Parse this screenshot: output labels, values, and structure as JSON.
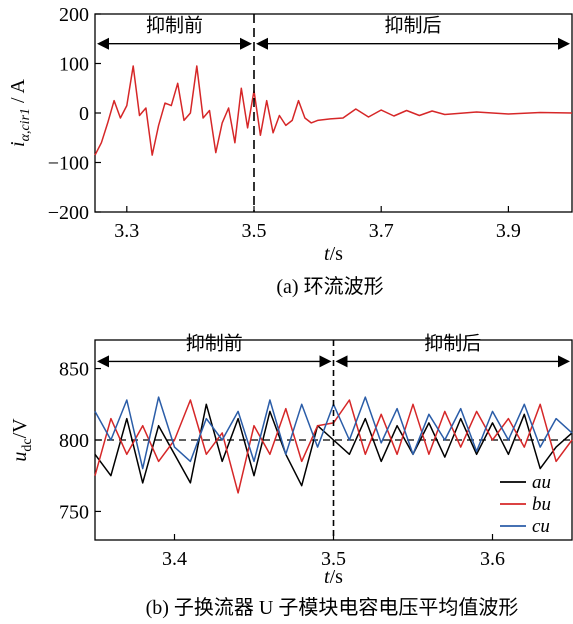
{
  "chart_data": [
    {
      "type": "line",
      "ylabel_main": "i",
      "ylabel_sub": "α,cir1",
      "ylabel_unit": " / A",
      "xlabel_main": "t",
      "xlabel_unit": "/s",
      "caption": "(a)  环流波形",
      "xlim": [
        3.25,
        4.0
      ],
      "ylim": [
        -200,
        200
      ],
      "xticks": [
        3.3,
        3.5,
        3.7,
        3.9
      ],
      "xtick_labels": [
        "3.3",
        "3.5",
        "3.7",
        "3.9"
      ],
      "yticks": [
        200,
        100,
        0,
        -100,
        -200
      ],
      "ytick_labels": [
        "200",
        "100",
        "0",
        "−100",
        "−200"
      ],
      "divider_x": 3.5,
      "annotations": [
        {
          "text": "抑制前",
          "x_start": 3.25,
          "x_end": 3.5,
          "y": 140
        },
        {
          "text": "抑制后",
          "x_start": 3.5,
          "x_end": 4.0,
          "y": 140
        }
      ],
      "series": [
        {
          "color": "#d62728",
          "x": [
            3.25,
            3.26,
            3.27,
            3.28,
            3.29,
            3.3,
            3.31,
            3.32,
            3.33,
            3.34,
            3.35,
            3.36,
            3.37,
            3.38,
            3.39,
            3.4,
            3.41,
            3.42,
            3.43,
            3.44,
            3.45,
            3.46,
            3.47,
            3.48,
            3.49,
            3.5,
            3.51,
            3.52,
            3.53,
            3.54,
            3.55,
            3.56,
            3.57,
            3.58,
            3.59,
            3.6,
            3.62,
            3.64,
            3.66,
            3.68,
            3.7,
            3.72,
            3.74,
            3.76,
            3.78,
            3.8,
            3.85,
            3.9,
            3.95,
            4.0
          ],
          "y": [
            -85,
            -60,
            -20,
            25,
            -10,
            15,
            95,
            -5,
            10,
            -85,
            -25,
            20,
            15,
            60,
            -15,
            0,
            95,
            -10,
            5,
            -80,
            -20,
            10,
            -60,
            50,
            -30,
            45,
            -45,
            25,
            -40,
            -5,
            -25,
            -15,
            25,
            -10,
            -20,
            -15,
            -12,
            -10,
            8,
            -8,
            6,
            -6,
            5,
            -5,
            4,
            -3,
            2,
            -2,
            1,
            0
          ]
        }
      ]
    },
    {
      "type": "line",
      "ylabel_main": "u",
      "ylabel_sub": "dc",
      "ylabel_unit": "/V",
      "xlabel_main": "t",
      "xlabel_unit": "/s",
      "caption": "(b)  子换流器 U 子模块电容电压平均值波形",
      "xlim": [
        3.35,
        3.65
      ],
      "ylim": [
        730,
        870
      ],
      "xticks": [
        3.4,
        3.5,
        3.6
      ],
      "xtick_labels": [
        "3.4",
        "3.5",
        "3.6"
      ],
      "yticks": [
        850,
        800,
        750
      ],
      "ytick_labels": [
        "850",
        "800",
        "750"
      ],
      "divider_x": 3.5,
      "reference_y": 800,
      "annotations": [
        {
          "text": "抑制前",
          "x_start": 3.35,
          "x_end": 3.5,
          "y": 855
        },
        {
          "text": "抑制后",
          "x_start": 3.5,
          "x_end": 3.65,
          "y": 855
        }
      ],
      "legend": {
        "position": "bottom-right",
        "entries": [
          "au",
          "bu",
          "cu"
        ]
      },
      "series": [
        {
          "name": "au",
          "color": "#000000",
          "x": [
            3.35,
            3.36,
            3.37,
            3.38,
            3.39,
            3.4,
            3.41,
            3.42,
            3.43,
            3.44,
            3.45,
            3.46,
            3.47,
            3.48,
            3.49,
            3.5,
            3.51,
            3.52,
            3.53,
            3.54,
            3.55,
            3.56,
            3.57,
            3.58,
            3.59,
            3.6,
            3.61,
            3.62,
            3.63,
            3.64,
            3.65
          ],
          "y": [
            790,
            775,
            815,
            770,
            810,
            790,
            770,
            825,
            785,
            815,
            775,
            820,
            790,
            768,
            810,
            800,
            790,
            815,
            785,
            810,
            790,
            812,
            788,
            815,
            790,
            812,
            790,
            818,
            780,
            795,
            805
          ]
        },
        {
          "name": "bu",
          "color": "#d62728",
          "x": [
            3.35,
            3.36,
            3.37,
            3.38,
            3.39,
            3.4,
            3.41,
            3.42,
            3.43,
            3.44,
            3.45,
            3.46,
            3.47,
            3.48,
            3.49,
            3.5,
            3.51,
            3.52,
            3.53,
            3.54,
            3.55,
            3.56,
            3.57,
            3.58,
            3.59,
            3.6,
            3.61,
            3.62,
            3.63,
            3.64,
            3.65
          ],
          "y": [
            775,
            815,
            790,
            810,
            785,
            800,
            828,
            790,
            805,
            763,
            810,
            790,
            822,
            785,
            810,
            812,
            828,
            790,
            818,
            790,
            825,
            790,
            820,
            795,
            820,
            800,
            815,
            795,
            825,
            785,
            800
          ]
        },
        {
          "name": "cu",
          "color": "#2b5da8",
          "x": [
            3.35,
            3.36,
            3.37,
            3.38,
            3.39,
            3.4,
            3.41,
            3.42,
            3.43,
            3.44,
            3.45,
            3.46,
            3.47,
            3.48,
            3.49,
            3.5,
            3.51,
            3.52,
            3.53,
            3.54,
            3.55,
            3.56,
            3.57,
            3.58,
            3.59,
            3.6,
            3.61,
            3.62,
            3.63,
            3.64,
            3.65
          ],
          "y": [
            820,
            800,
            828,
            780,
            830,
            795,
            785,
            815,
            800,
            820,
            785,
            828,
            790,
            825,
            795,
            825,
            800,
            830,
            798,
            822,
            790,
            818,
            800,
            822,
            792,
            820,
            800,
            825,
            795,
            815,
            805
          ]
        }
      ]
    }
  ]
}
